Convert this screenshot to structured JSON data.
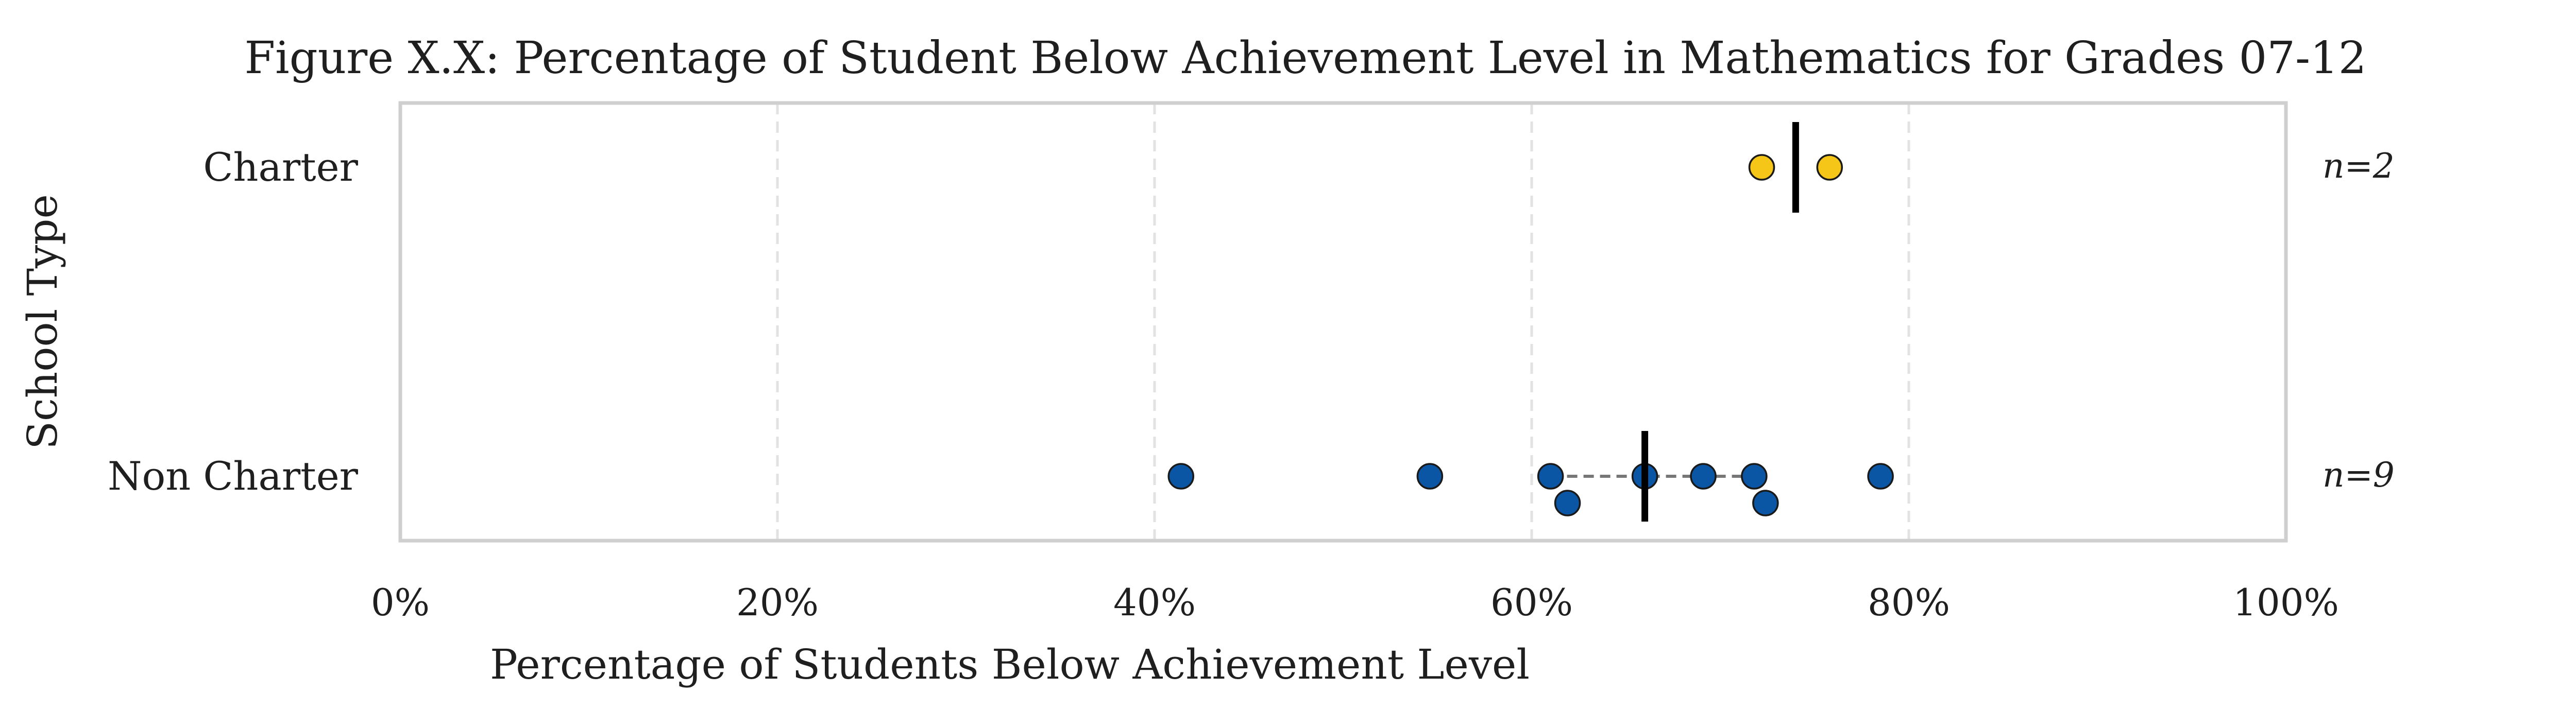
{
  "chart_data": {
    "type": "scatter",
    "title": "Figure X.X: Percentage of Student Below Achievement Level in Mathematics for Grades 07-12",
    "xlabel": "Percentage of Students Below Achievement Level",
    "ylabel": "School Type",
    "xlim": [
      0,
      100
    ],
    "x_ticks": [
      0,
      20,
      40,
      60,
      80,
      100
    ],
    "x_tick_labels": [
      "0%",
      "20%",
      "40%",
      "60%",
      "80%",
      "100%"
    ],
    "grid": "vertical dashed",
    "categories": [
      "Charter",
      "Non Charter"
    ],
    "series": [
      {
        "category": "Charter",
        "color": "#F5C518",
        "values": [
          72.2,
          75.8
        ],
        "median": 74.0,
        "n_label": "n=2"
      },
      {
        "category": "Non Charter",
        "color": "#0B56A4",
        "values": [
          41.4,
          54.6,
          61.0,
          61.9,
          66.0,
          69.1,
          71.8,
          72.4,
          78.5
        ],
        "median": 66.0,
        "iqr": [
          61.0,
          71.8
        ],
        "n_label": "n=9"
      }
    ]
  }
}
